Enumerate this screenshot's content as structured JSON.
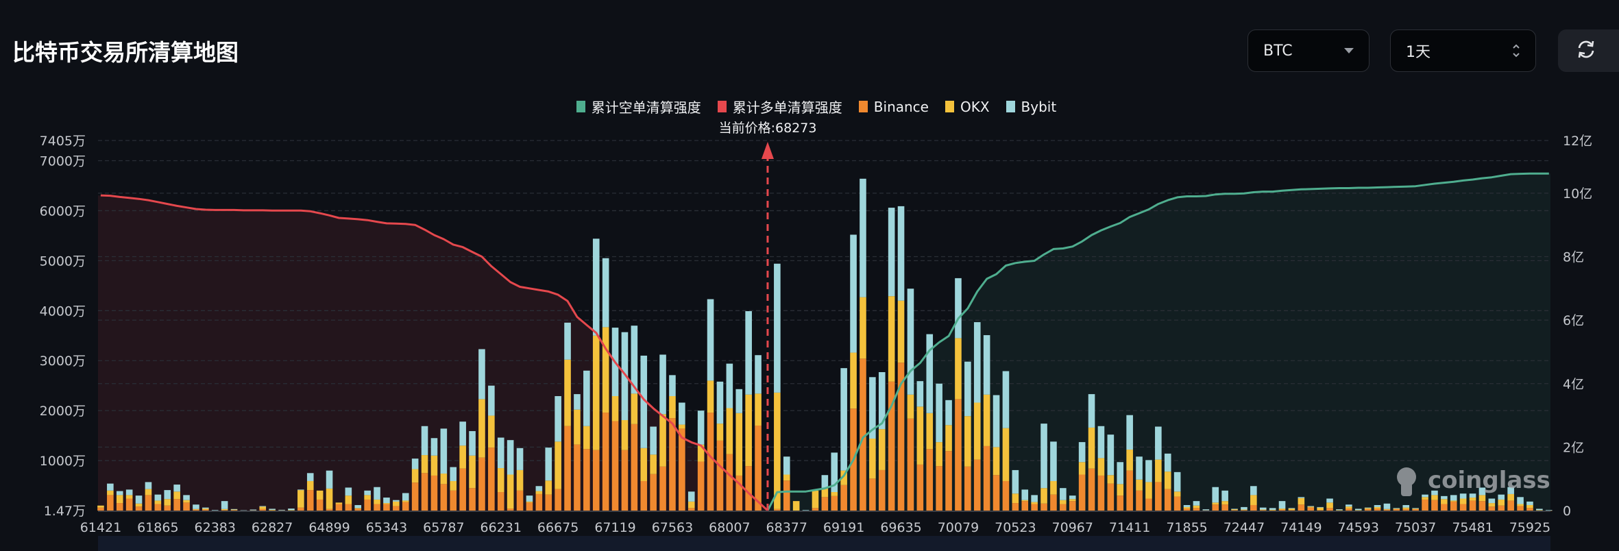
{
  "header": {
    "title": "比特币交易所清算地图",
    "coin_select": {
      "value": "BTC",
      "icon": "caret-down-icon"
    },
    "range_select": {
      "value": "1天",
      "icon": "up-down-chevron-icon"
    },
    "refresh_icon": "refresh-icon"
  },
  "watermark": "coinglass",
  "colors": {
    "short_cum": "#4fae8f",
    "long_cum": "#e5484d",
    "binance": "#f0892f",
    "okx": "#f4c23c",
    "bybit": "#9fd6dc",
    "background": "#0d1016"
  },
  "chart_data": {
    "type": "bar",
    "title": "比特币交易所清算地图",
    "legend": [
      "累计空单清算强度",
      "累计多单清算强度",
      "Binance",
      "OKX",
      "Bybit"
    ],
    "legend_position": "top-center",
    "current_price_label": "当前价格:68273",
    "current_price": 68273,
    "current_price_bar_index": 70,
    "x_tick_labels": [
      "61421",
      "61865",
      "62383",
      "62827",
      "64899",
      "65343",
      "65787",
      "66231",
      "66675",
      "67119",
      "67563",
      "68007",
      "68377",
      "69191",
      "69635",
      "70079",
      "70523",
      "70967",
      "71411",
      "71855",
      "72447",
      "74149",
      "74593",
      "75037",
      "75481",
      "75925"
    ],
    "x_tick_every_n_bars": 6,
    "y_left": {
      "unit": "万",
      "min": 1.47,
      "max": 7405,
      "ticks": [
        {
          "value": 0,
          "label": "1.47万"
        },
        {
          "value": 1000,
          "label": "1000万"
        },
        {
          "value": 2000,
          "label": "2000万"
        },
        {
          "value": 3000,
          "label": "3000万"
        },
        {
          "value": 4000,
          "label": "4000万"
        },
        {
          "value": 5000,
          "label": "5000万"
        },
        {
          "value": 6000,
          "label": "6000万"
        },
        {
          "value": 7000,
          "label": "7000万"
        },
        {
          "value": 7405,
          "label": "7405万"
        }
      ]
    },
    "y_right": {
      "unit": "亿",
      "min": 0,
      "max": 11.66,
      "ticks": [
        {
          "value": 0,
          "label": "0"
        },
        {
          "value": 2,
          "label": "2亿"
        },
        {
          "value": 4,
          "label": "4亿"
        },
        {
          "value": 6,
          "label": "6亿"
        },
        {
          "value": 8,
          "label": "8亿"
        },
        {
          "value": 10,
          "label": "10亿"
        },
        {
          "value": 11.66,
          "label": "12亿"
        }
      ]
    },
    "grid": true,
    "series": [
      {
        "name": "Binance",
        "type": "bar",
        "stack": "total",
        "axis": "left",
        "values": [
          60,
          310,
          150,
          240,
          80,
          310,
          130,
          100,
          230,
          160,
          20,
          20,
          5,
          10,
          10,
          3,
          5,
          30,
          5,
          5,
          5,
          60,
          410,
          220,
          30,
          130,
          130,
          40,
          220,
          130,
          130,
          90,
          170,
          560,
          750,
          700,
          530,
          400,
          840,
          450,
          1060,
          1260,
          370,
          40,
          400,
          160,
          330,
          320,
          430,
          1690,
          1320,
          1230,
          1210,
          1960,
          1790,
          1210,
          1730,
          590,
          730,
          880,
          1850,
          1640,
          50,
          980,
          1960,
          1400,
          1130,
          700,
          890,
          1700,
          0,
          30,
          600,
          0,
          5,
          50,
          270,
          290,
          510,
          2040,
          3040,
          640,
          810,
          2580,
          2960,
          1840,
          920,
          1230,
          890,
          1190,
          2230,
          880,
          1020,
          1290,
          710,
          590,
          150,
          190,
          130,
          140,
          320,
          130,
          190,
          720,
          840,
          700,
          540,
          300,
          800,
          400,
          240,
          570,
          430,
          280,
          40,
          50,
          5,
          120,
          120,
          10,
          10,
          110,
          10,
          10,
          20,
          10,
          120,
          60,
          10,
          50,
          5,
          40,
          5,
          30,
          40,
          20,
          30,
          30,
          30,
          220,
          210,
          130,
          180,
          130,
          200,
          190,
          80,
          100,
          200,
          90,
          50,
          5,
          5
        ]
      },
      {
        "name": "OKX",
        "type": "bar",
        "stack": "total",
        "axis": "left",
        "values": [
          40,
          90,
          160,
          70,
          60,
          120,
          70,
          130,
          150,
          50,
          10,
          20,
          0,
          20,
          10,
          0,
          0,
          50,
          10,
          0,
          5,
          350,
          180,
          180,
          410,
          30,
          170,
          10,
          90,
          90,
          20,
          90,
          30,
          270,
          360,
          400,
          210,
          190,
          460,
          650,
          1170,
          640,
          480,
          680,
          410,
          20,
          60,
          280,
          950,
          1330,
          700,
          460,
          2290,
          1710,
          500,
          600,
          610,
          660,
          390,
          1050,
          440,
          80,
          130,
          340,
          640,
          340,
          920,
          1250,
          1430,
          640,
          0,
          2330,
          120,
          190,
          0,
          350,
          170,
          80,
          290,
          1120,
          1230,
          800,
          820,
          1710,
          1240,
          480,
          1160,
          720,
          480,
          520,
          1220,
          1010,
          1140,
          1030,
          560,
          1060,
          190,
          20,
          40,
          310,
          270,
          80,
          40,
          250,
          820,
          350,
          170,
          230,
          420,
          220,
          330,
          450,
          350,
          100,
          30,
          50,
          0,
          40,
          70,
          20,
          10,
          200,
          10,
          5,
          20,
          30,
          130,
          20,
          50,
          110,
          5,
          40,
          5,
          20,
          30,
          10,
          10,
          30,
          10,
          50,
          100,
          100,
          20,
          110,
          60,
          120,
          70,
          120,
          130,
          40,
          60,
          5,
          0
        ]
      },
      {
        "name": "Bybit",
        "type": "bar",
        "stack": "total",
        "axis": "left",
        "values": [
          0,
          140,
          80,
          110,
          160,
          140,
          120,
          180,
          140,
          100,
          90,
          20,
          5,
          160,
          10,
          3,
          15,
          10,
          20,
          10,
          30,
          10,
          160,
          0,
          360,
          0,
          160,
          60,
          90,
          250,
          110,
          30,
          150,
          210,
          580,
          350,
          900,
          280,
          480,
          490,
          1000,
          600,
          610,
          690,
          440,
          120,
          100,
          660,
          910,
          740,
          310,
          1110,
          1940,
          1380,
          1370,
          1760,
          1360,
          1850,
          560,
          1190,
          420,
          440,
          200,
          680,
          1630,
          840,
          890,
          480,
          1670,
          770,
          0,
          2580,
          360,
          0,
          5,
          0,
          270,
          790,
          2050,
          2360,
          2370,
          1230,
          1140,
          1770,
          1890,
          2120,
          510,
          1580,
          1170,
          500,
          1200,
          1090,
          1610,
          1190,
          1040,
          1140,
          470,
          210,
          140,
          1290,
          790,
          240,
          70,
          400,
          670,
          640,
          810,
          440,
          690,
          460,
          440,
          660,
          360,
          390,
          40,
          90,
          20,
          310,
          210,
          5,
          50,
          180,
          40,
          35,
          150,
          10,
          20,
          10,
          10,
          80,
          15,
          40,
          25,
          10,
          40,
          110,
          10,
          50,
          10,
          50,
          90,
          60,
          110,
          100,
          80,
          150,
          90,
          100,
          140,
          140,
          70,
          25,
          5
        ]
      },
      {
        "name": "累计多单清算强度",
        "type": "line",
        "axis": "right",
        "start_index": 0,
        "values": [
          9.93,
          9.92,
          9.88,
          9.85,
          9.82,
          9.78,
          9.72,
          9.66,
          9.6,
          9.55,
          9.5,
          9.48,
          9.47,
          9.47,
          9.47,
          9.46,
          9.46,
          9.46,
          9.45,
          9.45,
          9.45,
          9.45,
          9.43,
          9.37,
          9.3,
          9.22,
          9.2,
          9.18,
          9.15,
          9.1,
          9.05,
          9.04,
          9.03,
          9.0,
          8.85,
          8.68,
          8.55,
          8.38,
          8.3,
          8.15,
          8.0,
          7.7,
          7.45,
          7.2,
          7.05,
          7.0,
          6.95,
          6.9,
          6.8,
          6.6,
          6.1,
          5.85,
          5.6,
          5.1,
          4.67,
          4.3,
          3.9,
          3.5,
          3.22,
          2.98,
          2.74,
          2.3,
          2.15,
          2.05,
          1.7,
          1.4,
          1.12,
          0.85,
          0.55,
          0.28,
          0
        ]
      },
      {
        "name": "累计空单清算强度",
        "type": "line",
        "axis": "right",
        "start_index": 70,
        "values": [
          0,
          0.58,
          0.6,
          0.6,
          0.6,
          0.65,
          0.7,
          0.8,
          1.1,
          1.6,
          2.3,
          2.55,
          2.75,
          3.3,
          4.0,
          4.4,
          4.65,
          5.05,
          5.3,
          5.5,
          6.05,
          6.37,
          6.9,
          7.3,
          7.45,
          7.72,
          7.8,
          7.84,
          7.87,
          8.07,
          8.24,
          8.26,
          8.32,
          8.48,
          8.68,
          8.83,
          8.95,
          9.06,
          9.25,
          9.37,
          9.49,
          9.66,
          9.78,
          9.87,
          9.9,
          9.9,
          9.91,
          9.96,
          9.98,
          9.98,
          9.99,
          10.03,
          10.05,
          10.05,
          10.08,
          10.1,
          10.12,
          10.13,
          10.14,
          10.15,
          10.16,
          10.16,
          10.17,
          10.17,
          10.18,
          10.19,
          10.2,
          10.21,
          10.22,
          10.26,
          10.3,
          10.33,
          10.36,
          10.4,
          10.43,
          10.47,
          10.5,
          10.55,
          10.6,
          10.61,
          10.62,
          10.62,
          10.62
        ]
      }
    ]
  }
}
